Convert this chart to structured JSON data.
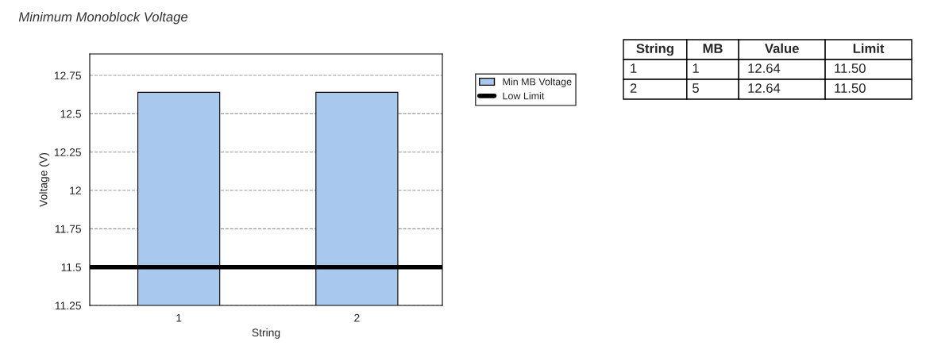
{
  "chart_data": [
    {
      "type": "bar",
      "title": "Minimum Monoblock Voltage",
      "xlabel": "String",
      "ylabel": "Voltage (V)",
      "categories": [
        "1",
        "2"
      ],
      "series": [
        {
          "name": "Min MB Voltage",
          "color": "#a8c8ee",
          "values": [
            12.64,
            12.64
          ]
        }
      ],
      "ylim": [
        11.25,
        12.89
      ],
      "yticks": [
        11.25,
        11.5,
        11.75,
        12,
        12.25,
        12.5,
        12.75
      ],
      "ref_lines": [
        {
          "axis": "y",
          "value": 11.5,
          "label": "Low Limit",
          "color": "#000000"
        }
      ],
      "grid": "y",
      "legend": "right"
    },
    {
      "type": "other",
      "categories": [
        "String",
        "MB",
        "Value",
        "Limit"
      ],
      "cell_labels": [
        [
          "1",
          "1",
          "12.64",
          "11.50"
        ],
        [
          "2",
          "5",
          "12.64",
          "11.50"
        ]
      ]
    }
  ]
}
